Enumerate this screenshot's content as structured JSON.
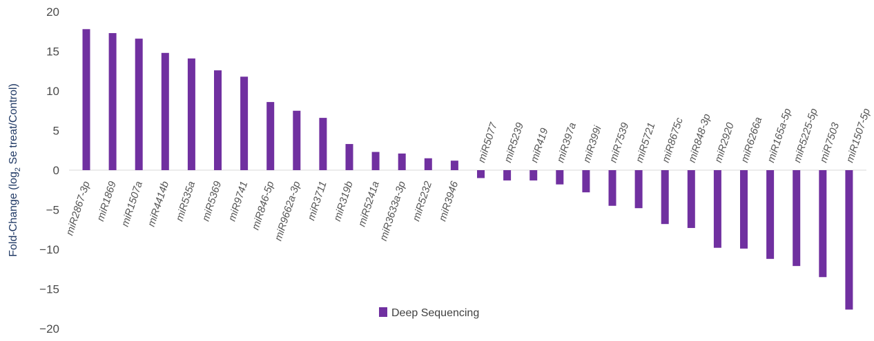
{
  "chart_data": {
    "type": "bar",
    "title": "",
    "xlabel": "",
    "ylabel_prefix": "Fold-Change (log",
    "ylabel_sub": "2",
    "ylabel_suffix": " Se treat/Control)",
    "ylim": [
      -20,
      20
    ],
    "yticks": [
      20,
      15,
      10,
      5,
      0,
      -5,
      -10,
      -15,
      -20
    ],
    "ytick_labels": [
      "20",
      "15",
      "10",
      "5",
      "0",
      "−5",
      "−10",
      "−15",
      "−20"
    ],
    "grid": false,
    "legend_position": "bottom",
    "bar_color": "#7030a0",
    "series": [
      {
        "name": "Deep Sequencing",
        "categories": [
          "miR2867-3p",
          "miR1869",
          "miR1507a",
          "miR4414b",
          "miR535a",
          "miR5369",
          "miR9741",
          "miR846-5p",
          "miR9662a-3p",
          "miR3711",
          "miR319b",
          "miR5241a",
          "miR3633a-3p",
          "miR5232",
          "miR3946",
          "miR5077",
          "miR5239",
          "miR419",
          "miR397a",
          "miR399i",
          "miR7539",
          "miR5721",
          "miR8675c",
          "miR848-3p",
          "miR2920",
          "miR6266a",
          "miR165a-5p",
          "miR5225-5p",
          "miR7503",
          "miR1507-5p"
        ],
        "values": [
          17.8,
          17.3,
          16.6,
          14.8,
          14.1,
          12.6,
          11.8,
          8.6,
          7.5,
          6.6,
          3.3,
          2.3,
          2.1,
          1.5,
          1.2,
          -1.0,
          -1.3,
          -1.3,
          -1.8,
          -2.8,
          -4.5,
          -4.8,
          -6.8,
          -7.3,
          -9.8,
          -9.9,
          -11.2,
          -12.1,
          -13.5,
          -17.6
        ]
      }
    ]
  }
}
